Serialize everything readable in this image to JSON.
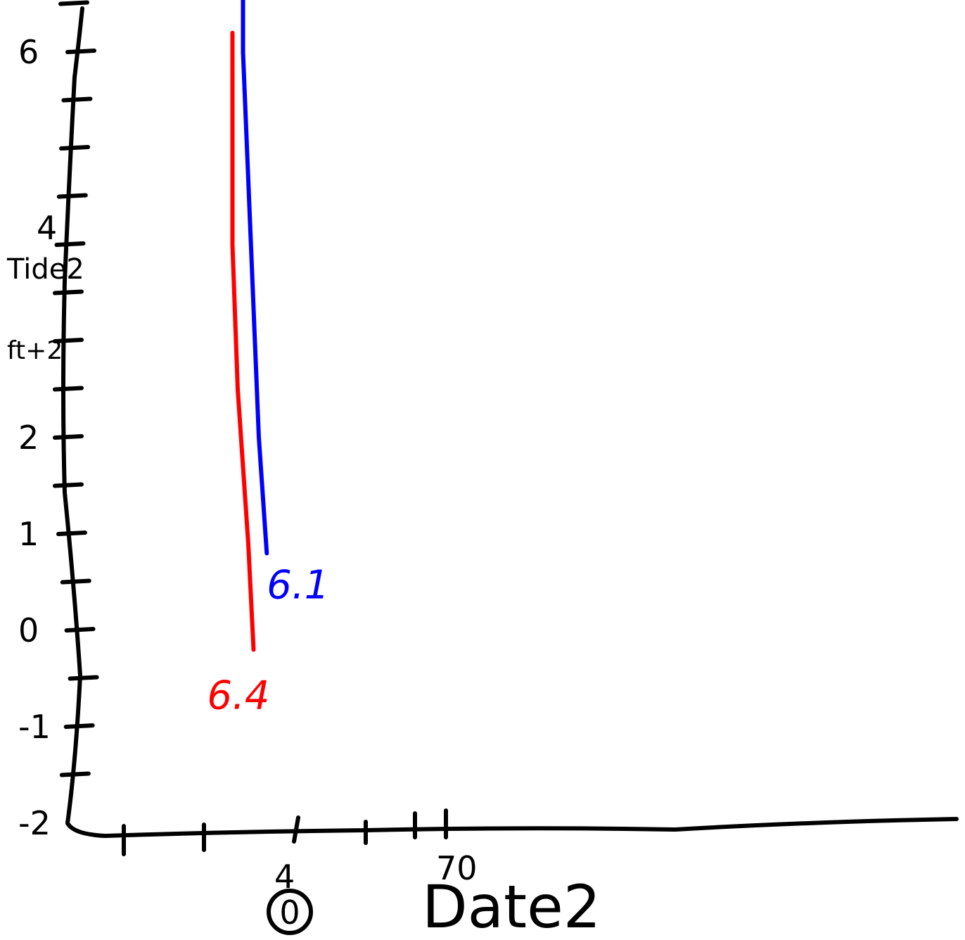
{
  "chart_data": {
    "type": "line",
    "xlabel": "Date2",
    "ylabel": "Tide2",
    "ylabel_unit": "ft+2",
    "x_tick_labels": [
      "4",
      "70"
    ],
    "x_note": "0",
    "y_ticks": [
      -2,
      -1,
      0,
      1,
      2,
      4,
      6
    ],
    "y_tick_labels": [
      "-2",
      "-1",
      "0",
      "1",
      "2",
      "4",
      "6"
    ],
    "ylim": [
      -2,
      7.3
    ],
    "series": [
      {
        "color": "#ff0000",
        "end_label": "6.4",
        "points": [
          [
            3.1,
            6.2
          ],
          [
            3.1,
            4.0
          ],
          [
            3.2,
            2.5
          ],
          [
            3.4,
            0.9
          ],
          [
            3.5,
            -0.2
          ]
        ]
      },
      {
        "color": "#0000ff",
        "end_label": "6.1",
        "points": [
          [
            3.3,
            7.3
          ],
          [
            3.3,
            6.0
          ],
          [
            3.45,
            4.0
          ],
          [
            3.6,
            2.0
          ],
          [
            3.75,
            0.8
          ]
        ]
      }
    ]
  }
}
